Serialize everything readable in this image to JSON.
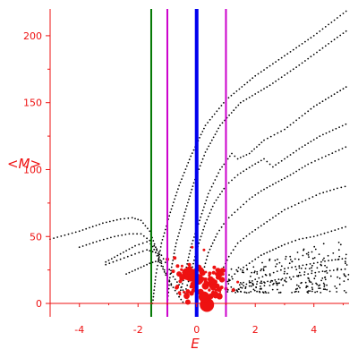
{
  "chart_data": {
    "type": "scatter",
    "title": "",
    "xlabel": "E",
    "ylabel": "<M>",
    "xlim": [
      -5,
      5.2
    ],
    "ylim": [
      -10,
      220
    ],
    "x_ticks": [
      -4,
      -2,
      0,
      2,
      4
    ],
    "y_ticks": [
      0,
      50,
      100,
      150,
      200
    ],
    "grid": false,
    "legend": "none",
    "colors": {
      "axes": "#ee1111",
      "ticks": "#ee1111",
      "points": "#000000",
      "blob": "#ee1111",
      "line_green": "#007700",
      "line_magenta": "#cc00cc",
      "line_blue": "#0000ee"
    },
    "vertical_lines": [
      {
        "x": -1.55,
        "color": "#007700",
        "width": 2
      },
      {
        "x": -1.0,
        "color": "#cc00cc",
        "width": 2
      },
      {
        "x": 0.0,
        "color": "#0000ee",
        "width": 4
      },
      {
        "x": 1.0,
        "color": "#cc00cc",
        "width": 2
      }
    ],
    "series": [
      {
        "style": "dotted-curve",
        "values": [
          [
            -5.0,
            48
          ],
          [
            -4.0,
            54
          ],
          [
            -3.2,
            60
          ],
          [
            -2.6,
            63
          ],
          [
            -2.2,
            64
          ],
          [
            -1.9,
            62
          ],
          [
            -1.6,
            54
          ],
          [
            -1.4,
            42
          ],
          [
            -1.2,
            30
          ],
          [
            -1.0,
            20
          ],
          [
            -0.8,
            12
          ],
          [
            -0.6,
            5
          ],
          [
            -0.4,
            -1
          ]
        ]
      },
      {
        "style": "dotted-curve",
        "values": [
          [
            -4.0,
            42
          ],
          [
            -3.3,
            47
          ],
          [
            -2.8,
            50
          ],
          [
            -2.3,
            52
          ],
          [
            -1.9,
            52
          ],
          [
            -1.6,
            47
          ],
          [
            -1.4,
            38
          ],
          [
            -1.2,
            28
          ],
          [
            -1.0,
            19
          ],
          [
            -0.8,
            11
          ]
        ]
      },
      {
        "style": "dotted-curve",
        "values": [
          [
            -3.1,
            31
          ],
          [
            -2.6,
            37
          ],
          [
            -2.1,
            43
          ],
          [
            -1.7,
            46
          ],
          [
            -1.45,
            43
          ],
          [
            -1.2,
            36
          ],
          [
            -1.0,
            28
          ],
          [
            -0.8,
            20
          ],
          [
            -0.6,
            14
          ],
          [
            -0.4,
            8
          ]
        ]
      },
      {
        "style": "dotted-curve",
        "values": [
          [
            -3.1,
            29
          ],
          [
            -2.6,
            33
          ],
          [
            -2.1,
            37
          ],
          [
            -1.7,
            40
          ],
          [
            -1.4,
            38
          ],
          [
            -1.2,
            34
          ]
        ]
      },
      {
        "style": "dotted-curve",
        "values": [
          [
            -2.4,
            22
          ],
          [
            -2.0,
            26
          ],
          [
            -1.6,
            30
          ],
          [
            -1.3,
            32
          ],
          [
            -1.1,
            31
          ]
        ]
      },
      {
        "style": "dotted-curve",
        "values": [
          [
            -1.5,
            0
          ],
          [
            -1.4,
            20
          ],
          [
            -1.2,
            45
          ],
          [
            -0.9,
            68
          ],
          [
            -0.6,
            88
          ],
          [
            -0.2,
            110
          ],
          [
            0.3,
            133
          ],
          [
            1.0,
            152
          ],
          [
            2.0,
            170
          ],
          [
            3.0,
            185
          ],
          [
            4.0,
            200
          ],
          [
            5.2,
            220
          ]
        ]
      },
      {
        "style": "dotted-curve",
        "values": [
          [
            -1.0,
            0
          ],
          [
            -0.9,
            22
          ],
          [
            -0.7,
            45
          ],
          [
            -0.4,
            68
          ],
          [
            -0.1,
            90
          ],
          [
            0.3,
            113
          ],
          [
            0.8,
            133
          ],
          [
            1.5,
            150
          ],
          [
            2.5,
            163
          ],
          [
            3.5,
            178
          ],
          [
            4.5,
            194
          ],
          [
            5.2,
            205
          ]
        ]
      },
      {
        "style": "dotted-curve",
        "values": [
          [
            -0.6,
            5
          ],
          [
            -0.4,
            22
          ],
          [
            -0.2,
            42
          ],
          [
            0.1,
            62
          ],
          [
            0.4,
            82
          ],
          [
            0.8,
            100
          ],
          [
            1.2,
            112
          ],
          [
            1.4,
            108
          ],
          [
            1.8,
            112
          ],
          [
            2.3,
            122
          ],
          [
            3.0,
            130
          ],
          [
            4.0,
            147
          ],
          [
            5.2,
            163
          ]
        ]
      },
      {
        "style": "dotted-curve",
        "values": [
          [
            -0.4,
            8
          ],
          [
            -0.2,
            22
          ],
          [
            0.0,
            40
          ],
          [
            0.3,
            60
          ],
          [
            0.6,
            75
          ],
          [
            1.0,
            88
          ],
          [
            1.4,
            96
          ],
          [
            1.9,
            103
          ],
          [
            2.3,
            108
          ],
          [
            2.6,
            102
          ],
          [
            3.0,
            108
          ],
          [
            3.6,
            117
          ],
          [
            4.2,
            125
          ],
          [
            5.2,
            135
          ]
        ]
      },
      {
        "style": "dotted-curve",
        "values": [
          [
            0.2,
            22
          ],
          [
            0.4,
            38
          ],
          [
            0.7,
            52
          ],
          [
            1.0,
            62
          ],
          [
            1.4,
            70
          ],
          [
            1.8,
            78
          ],
          [
            2.2,
            84
          ],
          [
            2.7,
            90
          ],
          [
            3.2,
            96
          ],
          [
            3.8,
            104
          ],
          [
            4.4,
            110
          ],
          [
            5.2,
            118
          ]
        ]
      },
      {
        "style": "dotted-curve",
        "values": [
          [
            0.8,
            22
          ],
          [
            1.1,
            35
          ],
          [
            1.4,
            45
          ],
          [
            1.8,
            52
          ],
          [
            2.2,
            58
          ],
          [
            2.6,
            64
          ],
          [
            3.0,
            70
          ],
          [
            3.6,
            76
          ],
          [
            4.2,
            82
          ],
          [
            4.8,
            86
          ],
          [
            5.2,
            88
          ]
        ]
      },
      {
        "style": "dotted-curve",
        "values": [
          [
            1.0,
            16
          ],
          [
            1.4,
            24
          ],
          [
            1.8,
            30
          ],
          [
            2.2,
            36
          ],
          [
            2.6,
            40
          ],
          [
            3.0,
            44
          ],
          [
            3.5,
            48
          ],
          [
            4.0,
            50
          ],
          [
            4.6,
            54
          ],
          [
            5.2,
            58
          ]
        ]
      },
      {
        "style": "dotted-curve",
        "values": [
          [
            1.5,
            12
          ],
          [
            2.0,
            18
          ],
          [
            2.5,
            22
          ],
          [
            3.0,
            26
          ],
          [
            3.5,
            28
          ],
          [
            4.0,
            30
          ],
          [
            4.5,
            32
          ],
          [
            5.2,
            34
          ]
        ]
      },
      {
        "style": "dotted-curve",
        "values": [
          [
            1.3,
            10
          ],
          [
            1.8,
            13
          ],
          [
            2.3,
            16
          ],
          [
            2.8,
            18
          ],
          [
            3.3,
            20
          ],
          [
            3.8,
            22
          ],
          [
            4.3,
            24
          ],
          [
            4.8,
            25
          ],
          [
            5.2,
            26
          ]
        ]
      }
    ],
    "scatter_cloud": {
      "x_range": [
        1.0,
        5.2
      ],
      "y_range": [
        8,
        50
      ],
      "count": 240
    },
    "blob_points": [
      {
        "x": 0.35,
        "y": -1,
        "r": 8
      },
      {
        "x": 0.25,
        "y": 5,
        "r": 6
      },
      {
        "x": -0.2,
        "y": 21,
        "r": 7
      },
      {
        "x": 0.05,
        "y": 18,
        "r": 6
      },
      {
        "x": -0.35,
        "y": 23,
        "r": 5
      },
      {
        "x": 0.3,
        "y": 13,
        "r": 4
      },
      {
        "x": 0.55,
        "y": 13,
        "r": 4
      },
      {
        "x": -0.5,
        "y": 19,
        "r": 3
      },
      {
        "x": -0.6,
        "y": 22,
        "r": 3
      },
      {
        "x": 0.7,
        "y": 13,
        "r": 3
      },
      {
        "x": -0.3,
        "y": 9,
        "r": 2.5
      },
      {
        "x": 0.15,
        "y": 25,
        "r": 3
      },
      {
        "x": -0.65,
        "y": 28,
        "r": 2
      },
      {
        "x": -1.0,
        "y": 33,
        "r": 2
      },
      {
        "x": -0.75,
        "y": 34,
        "r": 2
      },
      {
        "x": 0.6,
        "y": 27,
        "r": 2
      },
      {
        "x": 0.7,
        "y": 25,
        "r": 2
      },
      {
        "x": 0.68,
        "y": 22,
        "r": 2
      },
      {
        "x": 1.25,
        "y": 10,
        "r": 2
      },
      {
        "x": 1.4,
        "y": 16,
        "r": 1.5
      },
      {
        "x": -0.5,
        "y": 28,
        "r": 1.5
      },
      {
        "x": -0.25,
        "y": 29,
        "r": 2
      },
      {
        "x": 0.15,
        "y": 23,
        "r": 2
      },
      {
        "x": -0.3,
        "y": 1,
        "r": 3
      },
      {
        "x": 1.0,
        "y": 11,
        "r": 2
      },
      {
        "x": 0.45,
        "y": 15,
        "r": 3
      },
      {
        "x": -0.1,
        "y": 12,
        "r": 2
      },
      {
        "x": 0.0,
        "y": 25,
        "r": 2.5
      },
      {
        "x": -0.8,
        "y": 24,
        "r": 2
      },
      {
        "x": 0.85,
        "y": 12,
        "r": 2
      },
      {
        "x": 0.25,
        "y": 40,
        "r": 1.5
      },
      {
        "x": -0.15,
        "y": 42,
        "r": 1.5
      }
    ]
  }
}
